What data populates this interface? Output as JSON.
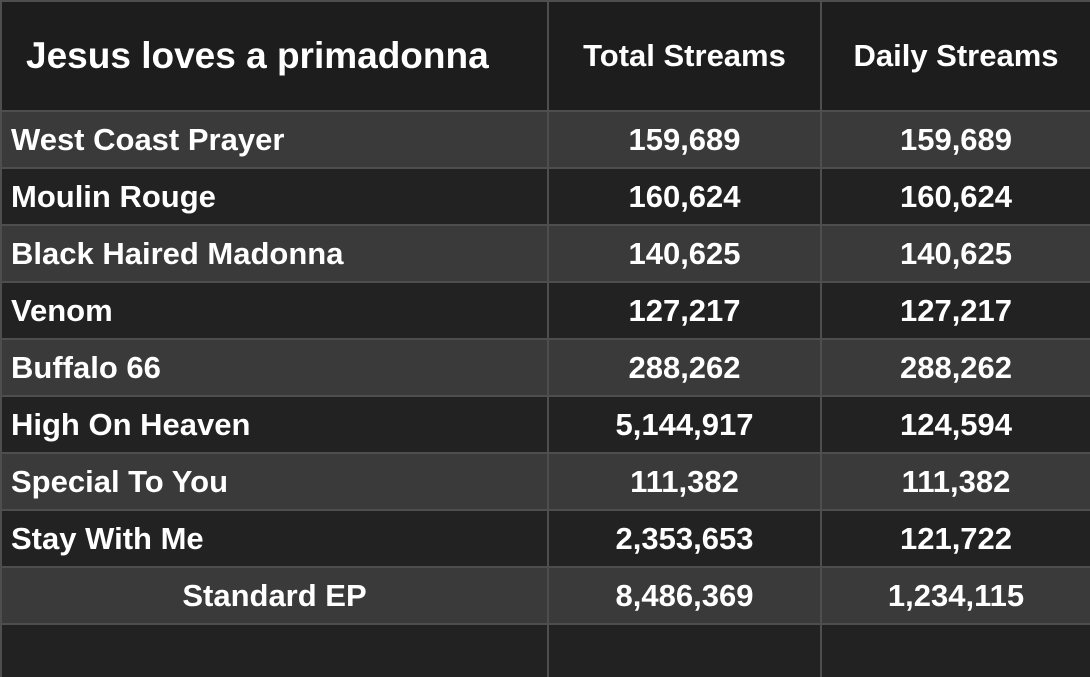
{
  "header": {
    "title": "Jesus loves a primadonna",
    "col_total": "Total Streams",
    "col_daily": "Daily Streams"
  },
  "rows": [
    {
      "song": "West Coast Prayer",
      "total": "159,689",
      "daily": "159,689"
    },
    {
      "song": "Moulin Rouge",
      "total": "160,624",
      "daily": "160,624"
    },
    {
      "song": "Black Haired Madonna",
      "total": "140,625",
      "daily": "140,625"
    },
    {
      "song": "Venom",
      "total": "127,217",
      "daily": "127,217"
    },
    {
      "song": "Buffalo 66",
      "total": "288,262",
      "daily": "288,262"
    },
    {
      "song": "High On Heaven",
      "total": "5,144,917",
      "daily": "124,594"
    },
    {
      "song": "Special To You",
      "total": "111,382",
      "daily": "111,382"
    },
    {
      "song": "Stay With Me",
      "total": "2,353,653",
      "daily": "121,722"
    }
  ],
  "summary": {
    "label": "Standard EP",
    "total": "8,486,369",
    "daily": "1,234,115"
  },
  "colors": {
    "background": "#262626",
    "row_light": "#3a3a3a",
    "row_dark": "#222222",
    "border": "#4e4e4e",
    "text": "#ffffff"
  }
}
